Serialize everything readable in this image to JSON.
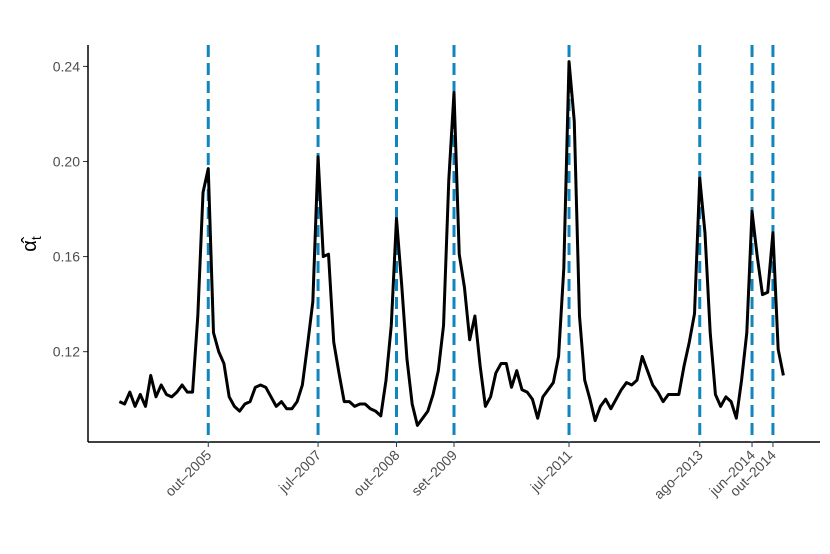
{
  "chart_data": {
    "type": "line",
    "ylabel": "α̂",
    "ylabel_subscript": "t",
    "x": [
      "2004-05",
      "2004-06",
      "2004-07",
      "2004-08",
      "2004-09",
      "2004-10",
      "2004-11",
      "2004-12",
      "2005-01",
      "2005-02",
      "2005-03",
      "2005-04",
      "2005-05",
      "2005-06",
      "2005-07",
      "2005-08",
      "2005-09",
      "2005-10",
      "2005-11",
      "2005-12",
      "2006-01",
      "2006-02",
      "2006-03",
      "2006-04",
      "2006-05",
      "2006-06",
      "2006-07",
      "2006-08",
      "2006-09",
      "2006-10",
      "2006-11",
      "2006-12",
      "2007-01",
      "2007-02",
      "2007-03",
      "2007-04",
      "2007-05",
      "2007-06",
      "2007-07",
      "2007-08",
      "2007-09",
      "2007-10",
      "2007-11",
      "2007-12",
      "2008-01",
      "2008-02",
      "2008-03",
      "2008-04",
      "2008-05",
      "2008-06",
      "2008-07",
      "2008-08",
      "2008-09",
      "2008-10",
      "2008-11",
      "2008-12",
      "2009-01",
      "2009-02",
      "2009-03",
      "2009-04",
      "2009-05",
      "2009-06",
      "2009-07",
      "2009-08",
      "2009-09",
      "2009-10",
      "2009-11",
      "2009-12",
      "2010-01",
      "2010-02",
      "2010-03",
      "2010-04",
      "2010-05",
      "2010-06",
      "2010-07",
      "2010-08",
      "2010-09",
      "2010-10",
      "2010-11",
      "2010-12",
      "2011-01",
      "2011-02",
      "2011-03",
      "2011-04",
      "2011-05",
      "2011-06",
      "2011-07",
      "2011-08",
      "2011-09",
      "2011-10",
      "2011-11",
      "2011-12",
      "2012-01",
      "2012-02",
      "2012-03",
      "2012-04",
      "2012-05",
      "2012-06",
      "2012-07",
      "2012-08",
      "2012-09",
      "2012-10",
      "2012-11",
      "2012-12",
      "2013-01",
      "2013-02",
      "2013-03",
      "2013-04",
      "2013-05",
      "2013-06",
      "2013-07",
      "2013-08",
      "2013-09",
      "2013-10",
      "2013-11",
      "2013-12",
      "2014-01",
      "2014-02",
      "2014-03",
      "2014-04",
      "2014-05",
      "2014-06",
      "2014-07",
      "2014-08",
      "2014-09",
      "2014-10",
      "2014-11",
      "2014-12"
    ],
    "values": [
      0.099,
      0.098,
      0.103,
      0.097,
      0.102,
      0.097,
      0.11,
      0.101,
      0.106,
      0.102,
      0.101,
      0.103,
      0.106,
      0.103,
      0.103,
      0.135,
      0.187,
      0.197,
      0.128,
      0.12,
      0.115,
      0.101,
      0.097,
      0.095,
      0.098,
      0.099,
      0.105,
      0.106,
      0.105,
      0.101,
      0.097,
      0.099,
      0.096,
      0.096,
      0.099,
      0.106,
      0.123,
      0.141,
      0.202,
      0.16,
      0.161,
      0.124,
      0.111,
      0.099,
      0.099,
      0.097,
      0.098,
      0.098,
      0.096,
      0.095,
      0.093,
      0.108,
      0.131,
      0.176,
      0.148,
      0.117,
      0.098,
      0.089,
      0.092,
      0.095,
      0.102,
      0.112,
      0.131,
      0.192,
      0.229,
      0.161,
      0.147,
      0.125,
      0.135,
      0.114,
      0.097,
      0.101,
      0.111,
      0.115,
      0.115,
      0.105,
      0.112,
      0.104,
      0.103,
      0.1,
      0.092,
      0.101,
      0.104,
      0.107,
      0.118,
      0.155,
      0.242,
      0.217,
      0.135,
      0.108,
      0.1,
      0.091,
      0.097,
      0.1,
      0.096,
      0.1,
      0.104,
      0.107,
      0.106,
      0.108,
      0.118,
      0.112,
      0.106,
      0.103,
      0.099,
      0.102,
      0.102,
      0.102,
      0.114,
      0.124,
      0.136,
      0.193,
      0.17,
      0.128,
      0.102,
      0.097,
      0.101,
      0.099,
      0.092,
      0.108,
      0.128,
      0.179,
      0.16,
      0.144,
      0.145,
      0.17,
      0.121,
      0.11
    ],
    "color": "#000000",
    "vline_color": "#1185bd",
    "xlim": [
      "2003-11",
      "2015-07"
    ],
    "xticks": [
      {
        "value": "2005-10",
        "label": "out–2005"
      },
      {
        "value": "2007-07",
        "label": "jul–2007"
      },
      {
        "value": "2008-10",
        "label": "out–2008"
      },
      {
        "value": "2009-09",
        "label": "set–2009"
      },
      {
        "value": "2011-07",
        "label": "jul–2011"
      },
      {
        "value": "2013-08",
        "label": "ago–2013"
      },
      {
        "value": "2014-06",
        "label": "jun–2014"
      },
      {
        "value": "2014-10",
        "label": "out–2014"
      }
    ],
    "ylim": [
      0.082,
      0.249
    ],
    "yticks": [
      0.12,
      0.16,
      {
        "value": 0.2,
        "label": "0.20"
      },
      0.24
    ]
  }
}
